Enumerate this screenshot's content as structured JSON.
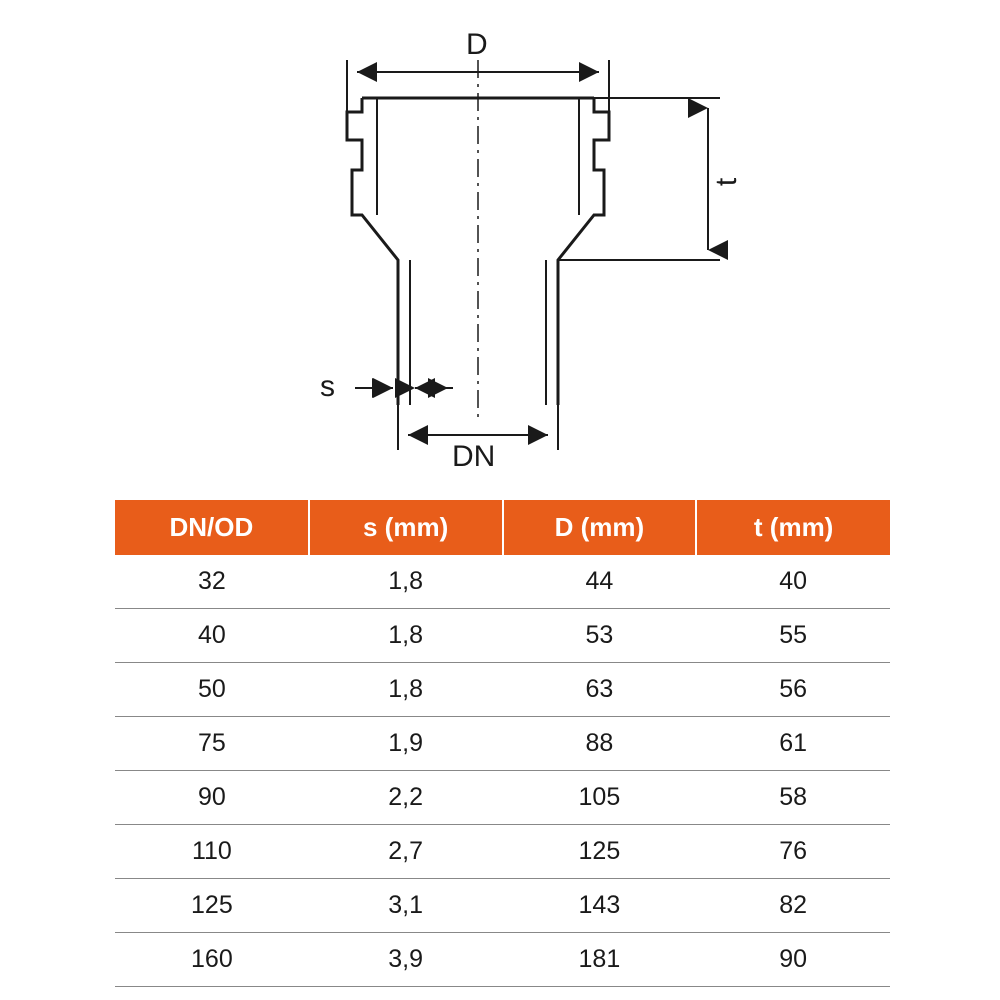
{
  "diagram": {
    "labels": {
      "D": "D",
      "t": "t",
      "s": "s",
      "DN": "DN"
    },
    "stroke_color": "#1a1a1a",
    "dash_pattern": "6,5",
    "line_width_main": 3,
    "line_width_thin": 2
  },
  "table": {
    "type": "table",
    "header_bg": "#e85d1a",
    "header_fg": "#ffffff",
    "cell_fg": "#1a1a1a",
    "border_color": "#888888",
    "header_fontsize": 26,
    "cell_fontsize": 25,
    "columns": [
      "DN/OD",
      "s (mm)",
      "D (mm)",
      "t (mm)"
    ],
    "rows": [
      [
        "32",
        "1,8",
        "44",
        "40"
      ],
      [
        "40",
        "1,8",
        "53",
        "55"
      ],
      [
        "50",
        "1,8",
        "63",
        "56"
      ],
      [
        "75",
        "1,9",
        "88",
        "61"
      ],
      [
        "90",
        "2,2",
        "105",
        "58"
      ],
      [
        "110",
        "2,7",
        "125",
        "76"
      ],
      [
        "125",
        "3,1",
        "143",
        "82"
      ],
      [
        "160",
        "3,9",
        "181",
        "90"
      ]
    ]
  }
}
